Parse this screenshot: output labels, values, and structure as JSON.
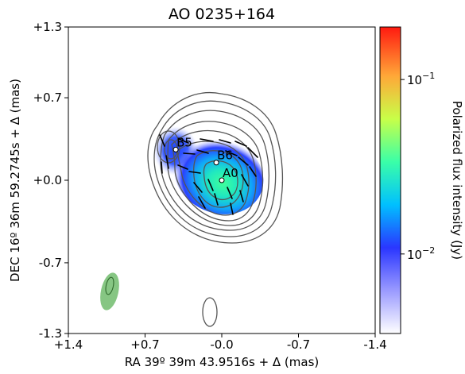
{
  "chart_data": {
    "type": "heatmap",
    "title": "AO 0235+164",
    "xlabel": "RA 39º 39m 43.9516s + Δ (mas)",
    "ylabel": "DEC 16º 36m 59.2745s + Δ (mas)",
    "colorbar_label": "Polarized flux intensity (Jy)",
    "xlim": [
      1.4,
      -1.4
    ],
    "ylim": [
      -1.3,
      1.3
    ],
    "x_ticks": [
      {
        "value": 1.4,
        "label": "+1.4"
      },
      {
        "value": 0.7,
        "label": "+0.7"
      },
      {
        "value": 0.0,
        "label": "-0.0"
      },
      {
        "value": -0.7,
        "label": "-0.7"
      },
      {
        "value": -1.4,
        "label": "-1.4"
      }
    ],
    "y_ticks": [
      {
        "value": 1.3,
        "label": "+1.3"
      },
      {
        "value": 0.7,
        "label": "+0.7"
      },
      {
        "value": 0.0,
        "label": "+0.0"
      },
      {
        "value": -0.7,
        "label": "-0.7"
      },
      {
        "value": -1.3,
        "label": "-1.3"
      }
    ],
    "colorbar": {
      "scale": "log",
      "range": [
        0.0035,
        0.2
      ],
      "ticks": [
        {
          "value": 0.1,
          "base": "10",
          "exp": "−1"
        },
        {
          "value": 0.01,
          "base": "10",
          "exp": "−2"
        }
      ],
      "colormap": [
        "#ffffff",
        "#8080ff",
        "#2030ff",
        "#00c8ff",
        "#30ff9a",
        "#ccff40",
        "#ffa030",
        "#ff2010"
      ]
    },
    "components": [
      {
        "label": "B5",
        "x": 0.42,
        "y": 0.26
      },
      {
        "label": "B6",
        "x": 0.05,
        "y": 0.15
      },
      {
        "label": "A0",
        "x": 0.0,
        "y": 0.0
      }
    ],
    "beam": {
      "x": 0.98,
      "y": -0.95,
      "major": 0.34,
      "minor": 0.16,
      "pa": 10,
      "color": "#5db35a"
    },
    "contour_color": "#555555",
    "polarization_vector_color": "#000000"
  }
}
